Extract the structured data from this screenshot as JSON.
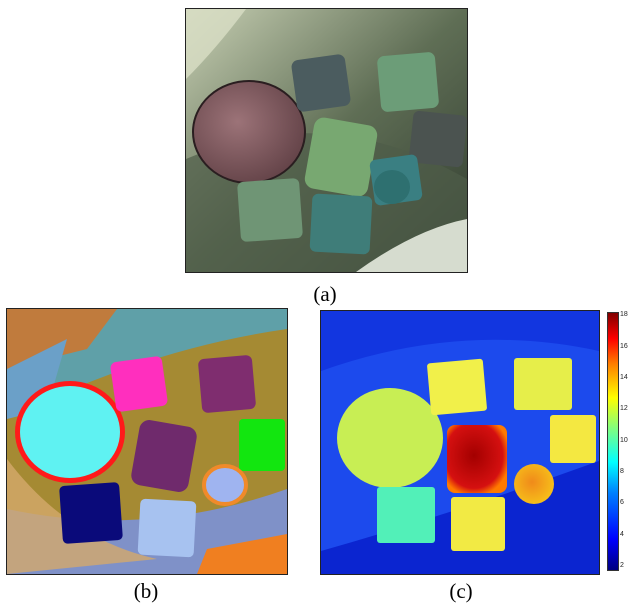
{
  "figure": {
    "panel_a": {
      "caption": "(a)",
      "kind": "photograph of rubber cubes and a disk on a leaf"
    },
    "panel_b": {
      "caption": "(b)",
      "kind": "segmentation map"
    },
    "panel_c": {
      "caption": "(c)",
      "kind": "heat map"
    },
    "colorbar": {
      "ticks": [
        "18",
        "16",
        "14",
        "12",
        "10",
        "8",
        "6",
        "4",
        "2"
      ],
      "colors": [
        "#00007f",
        "#0000ff",
        "#0080ff",
        "#00ffff",
        "#80ff80",
        "#ffff00",
        "#ff8000",
        "#ff0000",
        "#800000"
      ]
    }
  }
}
